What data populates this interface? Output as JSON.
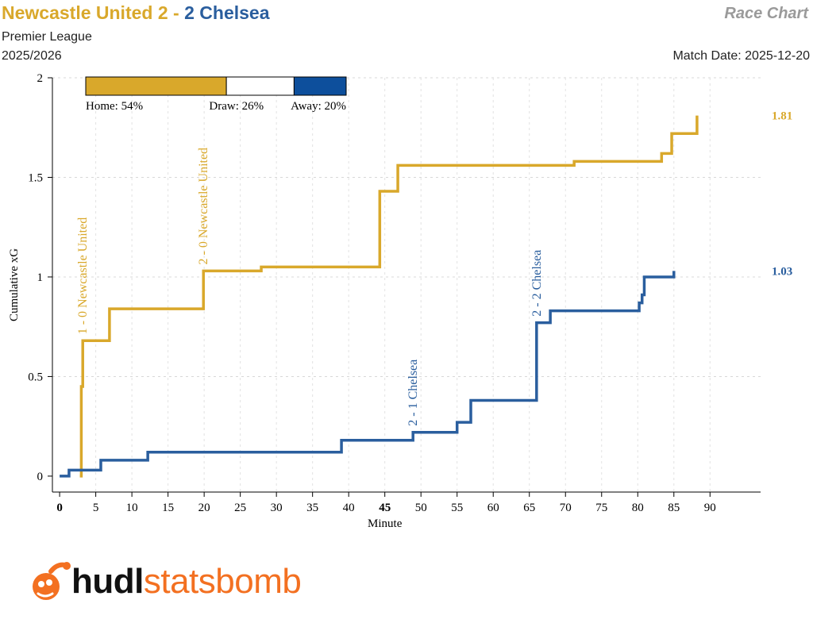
{
  "header": {
    "home_name": "Newcastle United",
    "home_score": "2",
    "separator": " - ",
    "away_score": "2",
    "away_name": "Chelsea",
    "chart_label": "Race Chart",
    "competition": "Premier League",
    "season": "2025/2026",
    "match_date": "Match Date: 2025-12-20"
  },
  "colors": {
    "home": "#d9a82b",
    "away": "#2a5e9e",
    "draw": "#ffffff",
    "home_bar": "#d9a82b",
    "away_bar": "#0d4f9c",
    "logo_orange": "#f37021",
    "logo_dark": "#111111"
  },
  "probability_bar": {
    "home_label": "Home: 54%",
    "draw_label": "Draw: 26%",
    "away_label": "Away: 20%",
    "home": 0.54,
    "draw": 0.26,
    "away": 0.2
  },
  "logo": {
    "part1": "hudl",
    "part2": "statsbomb",
    "icon": "statsbomb-bomb-icon"
  },
  "chart_data": {
    "type": "line",
    "step": true,
    "xlabel": "Minute",
    "ylabel": "Cumulative xG",
    "xlim": [
      -1,
      97
    ],
    "ylim": [
      -0.08,
      2
    ],
    "x_ticks": [
      0,
      5,
      10,
      15,
      20,
      25,
      30,
      35,
      40,
      45,
      50,
      55,
      60,
      65,
      70,
      75,
      80,
      85,
      90
    ],
    "x_tick_labels": [
      "0",
      "5",
      "10",
      "15",
      "20",
      "25",
      "30",
      "35",
      "40",
      "45",
      "50",
      "55",
      "60",
      "65",
      "70",
      "75",
      "80",
      "85",
      "90"
    ],
    "bold_ticks": [
      0,
      45
    ],
    "y_ticks": [
      0,
      0.5,
      1,
      1.5,
      2
    ],
    "y_tick_labels": [
      "0",
      "0.5",
      "1",
      "1.5",
      "2"
    ],
    "grid": "dashed",
    "series": [
      {
        "team": "home",
        "final_label": "1.81",
        "points": [
          [
            2.8,
            0
          ],
          [
            3.0,
            0.45
          ],
          [
            3.2,
            0.68
          ],
          [
            6.9,
            0.84
          ],
          [
            19.9,
            1.03
          ],
          [
            27.9,
            1.05
          ],
          [
            44.3,
            1.43
          ],
          [
            46.8,
            1.56
          ],
          [
            71.2,
            1.58
          ],
          [
            83.3,
            1.62
          ],
          [
            84.7,
            1.72
          ],
          [
            88.2,
            1.81
          ]
        ],
        "end": 88.2
      },
      {
        "team": "away",
        "final_label": "1.03",
        "points": [
          [
            0,
            0
          ],
          [
            1.3,
            0.03
          ],
          [
            5.7,
            0.08
          ],
          [
            12.2,
            0.12
          ],
          [
            39.0,
            0.18
          ],
          [
            48.9,
            0.22
          ],
          [
            55.0,
            0.27
          ],
          [
            56.9,
            0.38
          ],
          [
            66.0,
            0.77
          ],
          [
            67.9,
            0.83
          ],
          [
            80.2,
            0.87
          ],
          [
            80.6,
            0.91
          ],
          [
            80.9,
            1.0
          ],
          [
            85.0,
            1.03
          ]
        ],
        "end": 85.0
      }
    ],
    "annotations": [
      {
        "text": "1 - 0 Newcastle United",
        "x": 3.2,
        "y": 0.68,
        "team": "home"
      },
      {
        "text": "2 - 0 Newcastle United",
        "x": 19.9,
        "y": 1.03,
        "team": "home"
      },
      {
        "text": "2 - 1 Chelsea",
        "x": 48.9,
        "y": 0.22,
        "team": "away"
      },
      {
        "text": "2 - 2 Chelsea",
        "x": 66.0,
        "y": 0.77,
        "team": "away"
      }
    ]
  }
}
